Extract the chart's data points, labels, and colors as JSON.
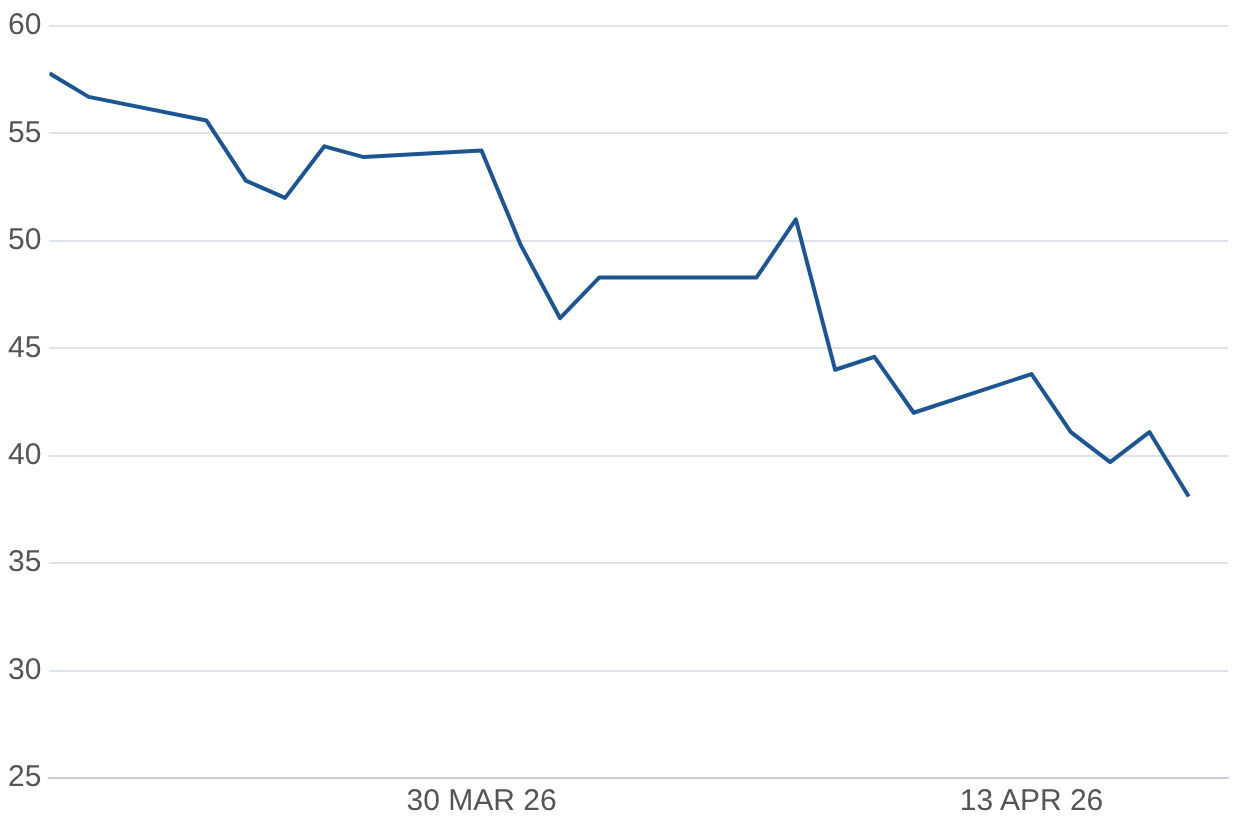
{
  "chart_data": {
    "type": "line",
    "x": [
      "2026-03-19",
      "2026-03-20",
      "2026-03-23",
      "2026-03-24",
      "2026-03-25",
      "2026-03-26",
      "2026-03-27",
      "2026-03-30",
      "2026-03-31",
      "2026-04-01",
      "2026-04-02",
      "2026-04-06",
      "2026-04-07",
      "2026-04-08",
      "2026-04-09",
      "2026-04-10",
      "2026-04-13",
      "2026-04-14",
      "2026-04-15",
      "2026-04-16",
      "2026-04-17"
    ],
    "series": [
      {
        "color": "#1d5593",
        "values": [
          57.8,
          56.7,
          55.6,
          52.8,
          52.0,
          54.4,
          53.9,
          54.2,
          49.8,
          46.4,
          48.3,
          48.3,
          51.0,
          44.0,
          44.6,
          42.0,
          43.8,
          41.1,
          39.7,
          41.1,
          38.1
        ]
      }
    ],
    "xlim": [
      "2026-03-19",
      "2026-04-18"
    ],
    "xticks": [
      {
        "value": "2026-03-30",
        "label": "30 MAR 26"
      },
      {
        "value": "2026-04-13",
        "label": "13 APR 26"
      }
    ],
    "ylim": [
      25,
      60
    ],
    "yticks": [
      25,
      30,
      35,
      40,
      45,
      50,
      55,
      60
    ],
    "grid": "y",
    "legend": false,
    "marker": "none",
    "line_style": "solid"
  }
}
